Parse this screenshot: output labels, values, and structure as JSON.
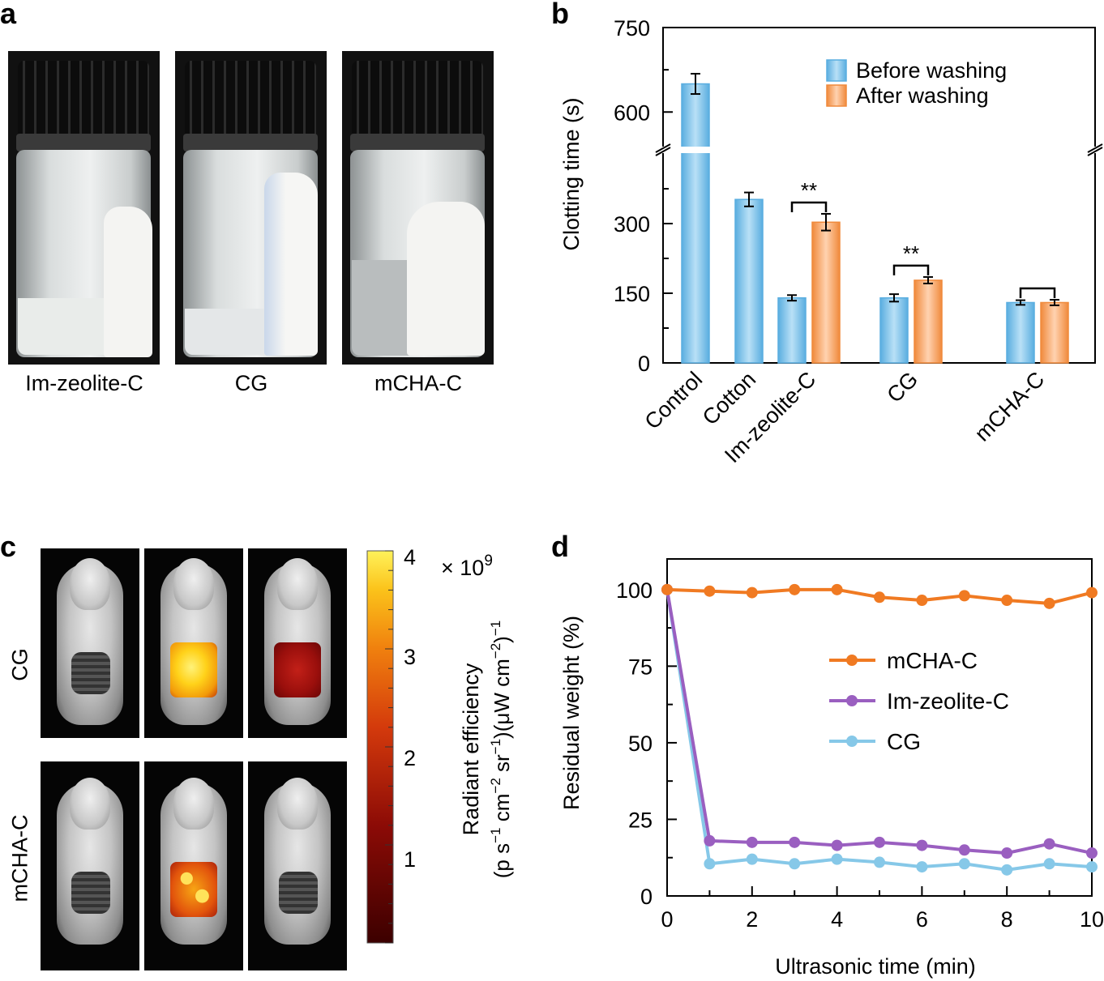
{
  "panel_labels": {
    "a": "a",
    "b": "b",
    "c": "c",
    "d": "d"
  },
  "panel_a": {
    "vials": [
      "Im-zeolite-C",
      "CG",
      "mCHA-C"
    ]
  },
  "panel_c": {
    "row_labels": [
      "CG",
      "mCHA-C"
    ],
    "colorbar": {
      "ticks": [
        "4",
        "3",
        "2",
        "1"
      ],
      "scale": "× 10",
      "scale_exp": "9",
      "label_line1": "Radiant efficiency",
      "label_line2": "(p s",
      "label_line2b": " cm",
      "label_line2c": " sr",
      "label_line2d": ")(μW cm",
      "label_line2e": ")",
      "exp_neg1": "−1",
      "exp_neg2": "−2"
    }
  },
  "chart_data": [
    {
      "type": "bar",
      "panel": "b",
      "ylabel": "Clotting time (s)",
      "categories": [
        "Control",
        "Cotton",
        "Im-zeolite-C",
        "CG",
        "mCHA-C"
      ],
      "axis_break": [
        450,
        540
      ],
      "yticks": [
        "0",
        "150",
        "300",
        "600",
        "750"
      ],
      "series": [
        {
          "name": "Before washing",
          "color": "#5aaee0",
          "values": [
            650,
            352,
            140,
            140,
            130
          ],
          "errors": [
            18,
            15,
            6,
            8,
            5
          ]
        },
        {
          "name": "After washing",
          "color": "#f08a3c",
          "values": [
            null,
            null,
            303,
            178,
            130
          ],
          "errors": [
            null,
            null,
            18,
            7,
            6
          ]
        }
      ],
      "significance": [
        {
          "category": "Im-zeolite-C",
          "label": "**"
        },
        {
          "category": "CG",
          "label": "**"
        },
        {
          "category": "mCHA-C",
          "label": ""
        }
      ],
      "legend_position": "top-right"
    },
    {
      "type": "line",
      "panel": "d",
      "xlabel": "Ultrasonic time (min)",
      "ylabel": "Residual weight (%)",
      "xlim": [
        0,
        10
      ],
      "ylim": [
        0,
        110
      ],
      "xticks": [
        "0",
        "2",
        "4",
        "6",
        "8",
        "10"
      ],
      "yticks": [
        "0",
        "25",
        "50",
        "75",
        "100"
      ],
      "x": [
        0,
        1,
        2,
        3,
        4,
        5,
        6,
        7,
        8,
        9,
        10
      ],
      "series": [
        {
          "name": "mCHA-C",
          "color": "#f07a22",
          "values": [
            100,
            99.5,
            99,
            100,
            100,
            97.5,
            96.5,
            98,
            96.5,
            95.5,
            99
          ]
        },
        {
          "name": "Im-zeolite-C",
          "color": "#9a5fc0",
          "values": [
            100,
            18,
            17.5,
            17.5,
            16.5,
            17.5,
            16.5,
            15,
            14,
            17,
            14
          ]
        },
        {
          "name": "CG",
          "color": "#86c8e8",
          "values": [
            100,
            10.5,
            12,
            10.5,
            12,
            11,
            9.5,
            10.5,
            8.5,
            10.5,
            9.5
          ]
        }
      ],
      "legend_position": "center-right"
    }
  ]
}
